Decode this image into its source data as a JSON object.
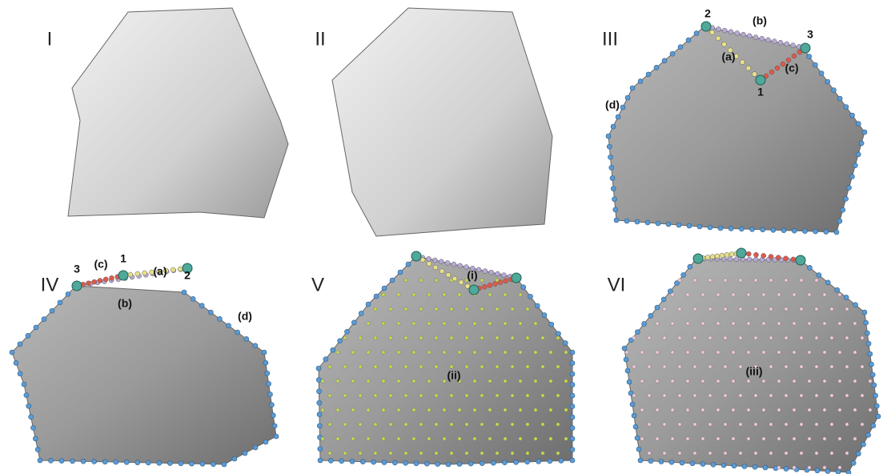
{
  "panels": [
    {
      "label": "I"
    },
    {
      "label": "II"
    },
    {
      "label": "III",
      "annotations": [
        "2",
        "(b)",
        "3",
        "(a)",
        "1",
        "(c)",
        "(d)"
      ]
    },
    {
      "label": "IV",
      "annotations": [
        "3",
        "(c)",
        "1",
        "(a)",
        "2",
        "(b)",
        "(d)"
      ]
    },
    {
      "label": "V",
      "annotations": [
        "(i)",
        "(ii)"
      ]
    },
    {
      "label": "VI",
      "annotations": [
        "(iii)"
      ]
    }
  ]
}
